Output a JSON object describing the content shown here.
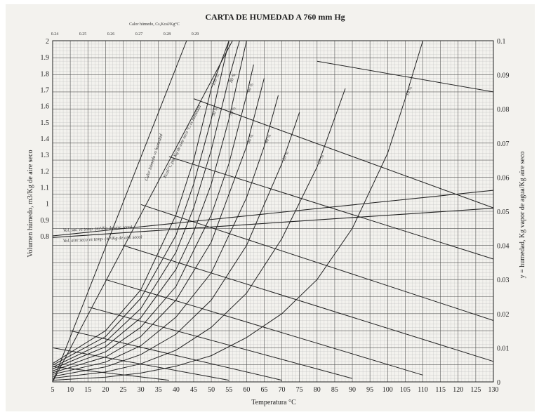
{
  "chart_data": {
    "type": "line",
    "title": "CARTA DE HUMEDAD A 760 mm Hg",
    "top_axis": {
      "label": "Calor húmedo, Cs,Kcal/Kg°C",
      "ticks": [
        "0.24",
        "0.25",
        "0.26",
        "0.27",
        "0.28",
        "0.29"
      ]
    },
    "xlabel": "Temperatura °C",
    "ylabel_left": "Volumen húmedo, m3/Kg de aire seco",
    "ylabel_right": "y = humedad, Kg vapor de agua/Kg aire seco",
    "xlim": [
      5,
      130
    ],
    "x_ticks": [
      5,
      10,
      15,
      20,
      25,
      30,
      35,
      40,
      45,
      50,
      55,
      60,
      65,
      70,
      75,
      80,
      85,
      90,
      95,
      100,
      105,
      110,
      115,
      120,
      125,
      130
    ],
    "y_left_ticks": [
      "0.8",
      "0.9",
      "1",
      "1.1",
      "1.2",
      "1.3",
      "1.4",
      "1.5",
      "1.6",
      "1.7",
      "1.8",
      "1.9",
      "2"
    ],
    "y_right_ticks": [
      "0",
      "0.01",
      "0.02",
      "0.03",
      "0.04",
      "0.05",
      "0.06",
      "0.07",
      "0.08",
      "0.09",
      "0.1"
    ],
    "ylim_right": [
      0,
      0.1
    ],
    "grid": true,
    "annotations": {
      "wet_heat": "Calor húmedo vs humedad",
      "sat_volume": "Vol. sat. vs temp. (m³/Kg de aire seco)",
      "dry_volume": "Vol. aire seco vs temp. (m³/Kg de aire seco)",
      "wet_heat_2": "Kcal/°C por Kg de aire seco °C vs humedad"
    },
    "relative_humidity_series": [
      {
        "name": "100 %",
        "x": [
          5,
          20,
          30,
          40,
          45,
          50,
          55
        ],
        "y": [
          0.0054,
          0.015,
          0.027,
          0.049,
          0.065,
          0.086,
          0.114
        ]
      },
      {
        "name": "90 %",
        "x": [
          5,
          20,
          30,
          40,
          45,
          50,
          55
        ],
        "y": [
          0.0049,
          0.0133,
          0.0245,
          0.043,
          0.058,
          0.077,
          0.101
        ]
      },
      {
        "name": "80 %",
        "x": [
          5,
          20,
          30,
          40,
          45,
          50,
          55,
          58
        ],
        "y": [
          0.0043,
          0.0118,
          0.0215,
          0.038,
          0.051,
          0.068,
          0.089,
          0.103
        ]
      },
      {
        "name": "70 %",
        "x": [
          5,
          20,
          30,
          40,
          45,
          50,
          55,
          60
        ],
        "y": [
          0.0038,
          0.0103,
          0.0188,
          0.033,
          0.044,
          0.058,
          0.077,
          0.101
        ]
      },
      {
        "name": "60 %",
        "x": [
          5,
          20,
          30,
          40,
          50,
          55,
          60,
          62
        ],
        "y": [
          0.0032,
          0.0088,
          0.016,
          0.028,
          0.049,
          0.064,
          0.084,
          0.093
        ]
      },
      {
        "name": "50 %",
        "x": [
          5,
          20,
          30,
          40,
          50,
          60,
          65
        ],
        "y": [
          0.0027,
          0.0073,
          0.0133,
          0.024,
          0.041,
          0.069,
          0.089
        ]
      },
      {
        "name": "40 %",
        "x": [
          5,
          20,
          30,
          40,
          50,
          60,
          65,
          69
        ],
        "y": [
          0.0022,
          0.0058,
          0.0106,
          0.019,
          0.032,
          0.054,
          0.069,
          0.084
        ]
      },
      {
        "name": "30 %",
        "x": [
          5,
          20,
          30,
          40,
          50,
          60,
          70,
          75
        ],
        "y": [
          0.0016,
          0.0044,
          0.008,
          0.014,
          0.024,
          0.04,
          0.064,
          0.079
        ]
      },
      {
        "name": "20 %",
        "x": [
          5,
          20,
          30,
          40,
          50,
          60,
          70,
          80,
          88
        ],
        "y": [
          0.0011,
          0.0029,
          0.0053,
          0.0093,
          0.016,
          0.026,
          0.042,
          0.063,
          0.086
        ]
      },
      {
        "name": "10 %",
        "x": [
          5,
          20,
          30,
          40,
          50,
          60,
          70,
          80,
          90,
          100,
          105,
          110
        ],
        "y": [
          0.0005,
          0.0014,
          0.0026,
          0.0046,
          0.0077,
          0.013,
          0.02,
          0.03,
          0.045,
          0.067,
          0.083,
          0.1
        ]
      }
    ],
    "adiabatic_series": [
      {
        "x": [
          5,
          38
        ],
        "y": [
          0.0045,
          0.0005
        ]
      },
      {
        "x": [
          5,
          55
        ],
        "y": [
          0.01,
          0.0005
        ]
      },
      {
        "x": [
          10,
          70
        ],
        "y": [
          0.015,
          0.0005
        ]
      },
      {
        "x": [
          15,
          90
        ],
        "y": [
          0.022,
          0.001
        ]
      },
      {
        "x": [
          20,
          110
        ],
        "y": [
          0.03,
          0.002
        ]
      },
      {
        "x": [
          25,
          130
        ],
        "y": [
          0.04,
          0.006
        ]
      },
      {
        "x": [
          30,
          130
        ],
        "y": [
          0.052,
          0.018
        ]
      },
      {
        "x": [
          38,
          130
        ],
        "y": [
          0.066,
          0.036
        ]
      },
      {
        "x": [
          45,
          130
        ],
        "y": [
          0.083,
          0.051
        ]
      },
      {
        "x": [
          80,
          130
        ],
        "y": [
          0.094,
          0.085
        ]
      }
    ],
    "wet_heat_lines": [
      {
        "x": [
          5,
          43
        ],
        "y": [
          0.0,
          0.1
        ]
      },
      {
        "x": [
          5,
          56
        ],
        "y": [
          0.0,
          0.1
        ]
      }
    ],
    "volume_lines": [
      {
        "name": "Vol. sat.",
        "x": [
          5,
          130
        ],
        "y": [
          0.8,
          1.08
        ]
      },
      {
        "name": "Vol. aire seco",
        "x": [
          5,
          130
        ],
        "y": [
          0.79,
          0.97
        ]
      }
    ]
  }
}
